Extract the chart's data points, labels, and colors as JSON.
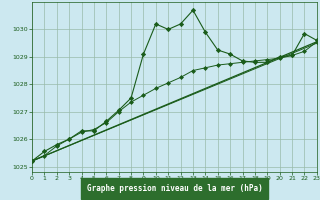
{
  "title": "Graphe pression niveau de la mer (hPa)",
  "background_color": "#cce8f0",
  "grid_color": "#99bbaa",
  "line_color": "#1a5c1a",
  "title_bg": "#2d6e2d",
  "title_fg": "#ffffff",
  "xlim": [
    0,
    23
  ],
  "ylim": [
    1024.8,
    1031.0
  ],
  "xticks": [
    0,
    1,
    2,
    3,
    4,
    5,
    6,
    7,
    8,
    9,
    10,
    11,
    12,
    13,
    14,
    15,
    16,
    17,
    18,
    19,
    20,
    21,
    22,
    23
  ],
  "yticks": [
    1025,
    1026,
    1027,
    1028,
    1029,
    1030
  ],
  "series1_x": [
    0,
    1,
    2,
    3,
    4,
    5,
    6,
    7,
    8,
    9,
    10,
    11,
    12,
    13,
    14,
    15,
    16,
    17,
    18,
    19,
    20,
    21,
    22,
    23
  ],
  "series1_y": [
    1025.2,
    1025.55,
    1025.8,
    1026.0,
    1026.3,
    1026.3,
    1026.65,
    1027.05,
    1027.5,
    1029.1,
    1030.2,
    1030.0,
    1030.2,
    1030.7,
    1029.9,
    1029.25,
    1029.1,
    1028.85,
    1028.8,
    1028.8,
    1029.0,
    1029.05,
    1029.85,
    1029.6
  ],
  "series2_x": [
    0,
    1,
    2,
    3,
    4,
    5,
    6,
    7,
    8,
    9,
    10,
    11,
    12,
    13,
    14,
    15,
    16,
    17,
    18,
    19,
    20,
    21,
    22,
    23
  ],
  "series2_y": [
    1025.2,
    1025.4,
    1025.75,
    1026.0,
    1026.25,
    1026.35,
    1026.6,
    1027.0,
    1027.35,
    1027.6,
    1027.85,
    1028.05,
    1028.25,
    1028.5,
    1028.6,
    1028.7,
    1028.75,
    1028.8,
    1028.85,
    1028.9,
    1028.95,
    1029.05,
    1029.2,
    1029.55
  ],
  "series3_x": [
    0,
    23
  ],
  "series3_y": [
    1025.2,
    1029.55
  ],
  "series4_x": [
    0,
    23
  ],
  "series4_y": [
    1025.2,
    1029.5
  ]
}
